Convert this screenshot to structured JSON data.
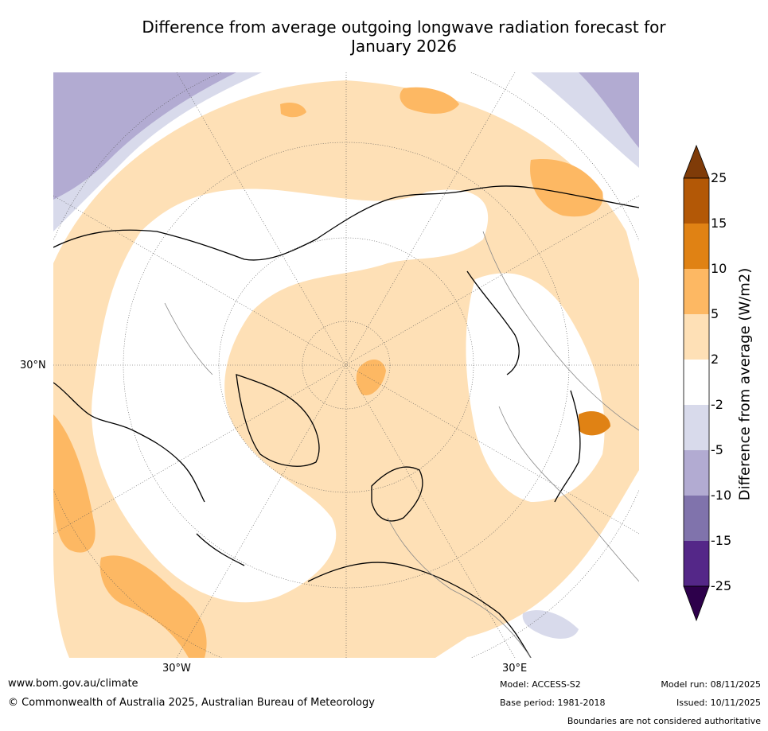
{
  "title_line1": "Difference from average outgoing longwave radiation forecast for",
  "title_line2": "January 2026",
  "map": {
    "lat_label": "30°N",
    "lon_label_w": "30°W",
    "lon_label_e": "30°E"
  },
  "colorbar": {
    "title": "Difference from average (W/m2)",
    "ticks": [
      "25",
      "15",
      "10",
      "5",
      "2",
      "-2",
      "-5",
      "-10",
      "-15",
      "-25"
    ],
    "colors": {
      "gt25": "#7f3b08",
      "c15_25": "#b35806",
      "c10_15": "#e08214",
      "c5_10": "#fdb863",
      "c2_5": "#fee0b6",
      "cneutral": "#ffffff",
      "cm5_m2": "#d8daeb",
      "cm10_m5": "#b2abd2",
      "cm15_m10": "#8073ac",
      "cm25_m15": "#542788",
      "lt_m25": "#2d004b"
    }
  },
  "footer": {
    "website": "www.bom.gov.au/climate",
    "copyright": "© Commonwealth of Australia 2025, Australian Bureau of Meteorology",
    "model": "Model: ACCESS-S2",
    "base_period": "Base period: 1981-2018",
    "model_run": "Model run: 08/11/2025",
    "issued": "Issued: 10/11/2025",
    "disclaimer": "Boundaries are not considered authoritative"
  }
}
